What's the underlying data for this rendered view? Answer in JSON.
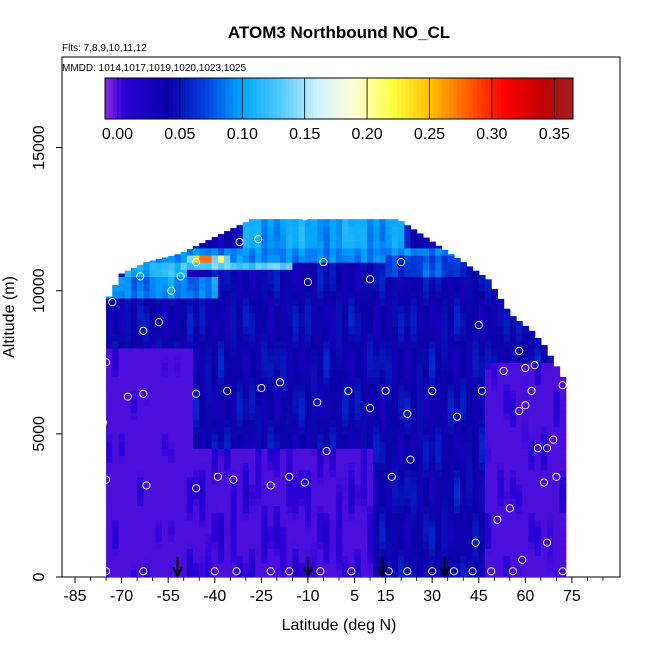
{
  "chart_data": {
    "type": "heatmap",
    "title": "ATOM3 Northbound NO_CL",
    "flights_label": "Flts: 7,8,9,10,11,12",
    "dates_label": "MMDD: 1014,1017,1019,1020,1023,1025",
    "xlabel": "Latitude (deg N)",
    "ylabel": "Altitude (m)",
    "xlim": [
      -85,
      85
    ],
    "ylim": [
      0,
      17500
    ],
    "x_ticks": [
      -85,
      -70,
      -55,
      -40,
      -25,
      -10,
      5,
      15,
      30,
      45,
      60,
      75
    ],
    "x_tick_labels": [
      "-85",
      "-70",
      "-55",
      "-40",
      "-25",
      "-10",
      "5",
      "15",
      "30",
      "45",
      "60",
      "75"
    ],
    "y_ticks": [
      0,
      5000,
      10000,
      15000
    ],
    "y_tick_labels": [
      "0",
      "5000",
      "10000",
      "15000"
    ],
    "colorbar": {
      "range": [
        -0.01,
        0.365
      ],
      "tick_values": [
        0.0,
        0.05,
        0.1,
        0.15,
        0.2,
        0.25,
        0.3,
        0.35
      ],
      "tick_labels": [
        "0.00",
        "0.05",
        "0.10",
        "0.15",
        "0.20",
        "0.25",
        "0.30",
        "0.35"
      ],
      "color_stops": [
        {
          "value": -0.01,
          "color": "#8a2be2"
        },
        {
          "value": 0.005,
          "color": "#2b00d8"
        },
        {
          "value": 0.04,
          "color": "#0a00a8"
        },
        {
          "value": 0.07,
          "color": "#0040e0"
        },
        {
          "value": 0.1,
          "color": "#00a8ff"
        },
        {
          "value": 0.13,
          "color": "#50c8ff"
        },
        {
          "value": 0.16,
          "color": "#d0f0ff"
        },
        {
          "value": 0.19,
          "color": "#ffffd0"
        },
        {
          "value": 0.22,
          "color": "#ffff40"
        },
        {
          "value": 0.25,
          "color": "#ffc000"
        },
        {
          "value": 0.28,
          "color": "#ff6000"
        },
        {
          "value": 0.31,
          "color": "#ff0000"
        },
        {
          "value": 0.34,
          "color": "#c00000"
        },
        {
          "value": 0.365,
          "color": "#a02020"
        }
      ]
    },
    "field": {
      "lat_range": [
        -75,
        73
      ],
      "top_profile": [
        {
          "lat": -75,
          "alt": 7600
        },
        {
          "lat": -74,
          "alt": 9800
        },
        {
          "lat": -70,
          "alt": 10600
        },
        {
          "lat": -62,
          "alt": 11000
        },
        {
          "lat": -51,
          "alt": 11300
        },
        {
          "lat": -28,
          "alt": 12500
        },
        {
          "lat": 19,
          "alt": 12500
        },
        {
          "lat": 40,
          "alt": 11000
        },
        {
          "lat": 48,
          "alt": 10400
        },
        {
          "lat": 55,
          "alt": 9200
        },
        {
          "lat": 62,
          "alt": 8600
        },
        {
          "lat": 66,
          "alt": 8100
        },
        {
          "lat": 73,
          "alt": 6800
        }
      ],
      "features": [
        {
          "kind": "background",
          "value": 0.04
        },
        {
          "kind": "band",
          "alt_min": 0,
          "alt_max": 8000,
          "lat_min": -78,
          "lat_max": -48,
          "value": -0.01
        },
        {
          "kind": "band",
          "alt_min": 0,
          "alt_max": 4500,
          "lat_min": -48,
          "lat_max": 10,
          "value": 0.0
        },
        {
          "kind": "band",
          "alt_min": 0,
          "alt_max": 7500,
          "lat_min": 48,
          "lat_max": 75,
          "value": -0.005
        },
        {
          "kind": "band",
          "alt_min": 9800,
          "alt_max": 10600,
          "lat_min": -78,
          "lat_max": -40,
          "value": 0.09
        },
        {
          "kind": "band",
          "alt_min": 10500,
          "alt_max": 11000,
          "lat_min": -68,
          "lat_max": -50,
          "value": 0.11
        },
        {
          "kind": "band",
          "alt_min": 10650,
          "alt_max": 11000,
          "lat_min": -50,
          "lat_max": -15,
          "value": 0.13
        },
        {
          "kind": "band",
          "alt_min": 11000,
          "alt_max": 11500,
          "lat_min": -60,
          "lat_max": 40,
          "value": 0.09
        },
        {
          "kind": "band",
          "alt_min": 11500,
          "alt_max": 12500,
          "lat_min": -30,
          "lat_max": 20,
          "value": 0.1
        },
        {
          "kind": "band",
          "alt_min": 10600,
          "alt_max": 11300,
          "lat_min": 15,
          "lat_max": 40,
          "value": 0.07
        },
        {
          "kind": "hot",
          "lat": -43,
          "alt": 11100,
          "value": 0.36
        },
        {
          "kind": "hot",
          "lat": -46,
          "alt": 11150,
          "value": 0.26
        },
        {
          "kind": "hot",
          "lat": -38,
          "alt": 11050,
          "value": 0.28
        },
        {
          "kind": "hot",
          "lat": -32,
          "alt": 11000,
          "value": 0.18
        }
      ]
    },
    "sample_points": [
      [
        -75,
        200
      ],
      [
        -63,
        200
      ],
      [
        -40,
        200
      ],
      [
        -33,
        200
      ],
      [
        -22,
        200
      ],
      [
        -16,
        200
      ],
      [
        -6,
        200
      ],
      [
        4,
        200
      ],
      [
        16,
        200
      ],
      [
        22,
        200
      ],
      [
        30,
        200
      ],
      [
        37,
        200
      ],
      [
        43,
        200
      ],
      [
        49,
        200
      ],
      [
        56,
        200
      ],
      [
        72,
        200
      ],
      [
        -75,
        3400
      ],
      [
        -62,
        3200
      ],
      [
        -46,
        3100
      ],
      [
        -39,
        3500
      ],
      [
        -34,
        3400
      ],
      [
        -22,
        3200
      ],
      [
        -16,
        3500
      ],
      [
        -11,
        3300
      ],
      [
        17,
        3500
      ],
      [
        23,
        4100
      ],
      [
        44,
        1200
      ],
      [
        51,
        2000
      ],
      [
        55,
        2400
      ],
      [
        59,
        600
      ],
      [
        67,
        1200
      ],
      [
        -76,
        5400
      ],
      [
        -68,
        6300
      ],
      [
        -63,
        6400
      ],
      [
        -46,
        6400
      ],
      [
        -36,
        6500
      ],
      [
        -25,
        6600
      ],
      [
        -19,
        6800
      ],
      [
        -7,
        6100
      ],
      [
        -4,
        4400
      ],
      [
        3,
        6500
      ],
      [
        10,
        5900
      ],
      [
        15,
        6500
      ],
      [
        22,
        5700
      ],
      [
        30,
        6500
      ],
      [
        38,
        5600
      ],
      [
        46,
        6500
      ],
      [
        53,
        7200
      ],
      [
        58,
        5800
      ],
      [
        60,
        6000
      ],
      [
        62,
        6500
      ],
      [
        63,
        7400
      ],
      [
        64,
        4500
      ],
      [
        67,
        4500
      ],
      [
        69,
        4800
      ],
      [
        70,
        3500
      ],
      [
        66,
        3300
      ],
      [
        72,
        6700
      ],
      [
        -75,
        7500
      ],
      [
        -73,
        9600
      ],
      [
        -63,
        8600
      ],
      [
        -58,
        8900
      ],
      [
        -54,
        10000
      ],
      [
        -51,
        10500
      ],
      [
        -46,
        11000
      ],
      [
        -32,
        11700
      ],
      [
        -26,
        11800
      ],
      [
        -10,
        10300
      ],
      [
        -5,
        11000
      ],
      [
        10,
        10400
      ],
      [
        20,
        11000
      ],
      [
        37,
        11500
      ],
      [
        45,
        8800
      ],
      [
        58,
        7900
      ],
      [
        60,
        7300
      ],
      [
        68,
        8400
      ],
      [
        -64,
        10500
      ],
      [
        -11,
        12600
      ]
    ],
    "arrow_latitudes": [
      -52,
      -10,
      14,
      34
    ],
    "arrow_altitude_top": 700
  }
}
